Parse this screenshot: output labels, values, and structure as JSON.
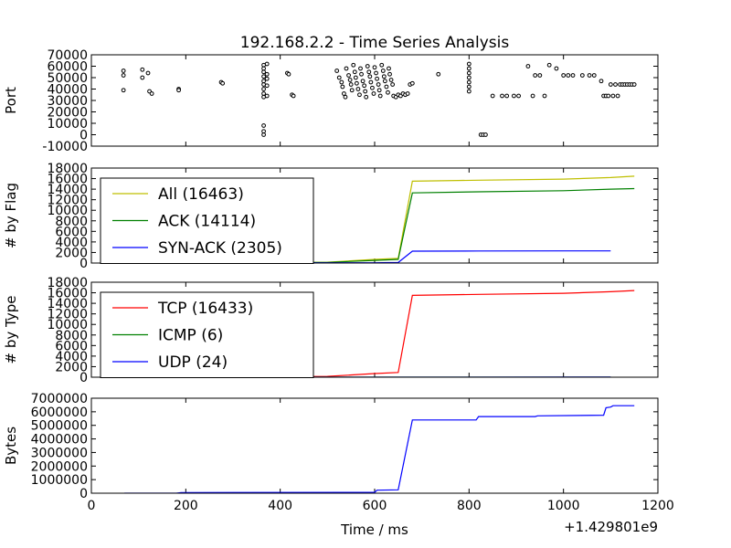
{
  "chart_data": [
    {
      "type": "scatter",
      "title": "192.168.2.2 - Time Series Analysis",
      "ylabel": "Port",
      "xlim": [
        0,
        1200
      ],
      "ylim": [
        -10000,
        70000
      ],
      "yticks": [
        -10000,
        0,
        10000,
        20000,
        30000,
        40000,
        50000,
        60000,
        70000
      ],
      "x_ticks_shown": false,
      "colors": {
        "marker_edge": "#000000",
        "marker_fill": "#ffffff"
      },
      "points": [
        [
          68,
          56000
        ],
        [
          68,
          52000
        ],
        [
          68,
          39000
        ],
        [
          108,
          57000
        ],
        [
          108,
          50000
        ],
        [
          120,
          54000
        ],
        [
          123,
          38000
        ],
        [
          128,
          36000
        ],
        [
          185,
          40000
        ],
        [
          185,
          39000
        ],
        [
          275,
          46000
        ],
        [
          278,
          45000
        ],
        [
          365,
          61000
        ],
        [
          365,
          58000
        ],
        [
          365,
          55000
        ],
        [
          365,
          51000
        ],
        [
          365,
          47000
        ],
        [
          365,
          44000
        ],
        [
          365,
          40000
        ],
        [
          365,
          36000
        ],
        [
          365,
          33000
        ],
        [
          365,
          8000
        ],
        [
          365,
          3000
        ],
        [
          365,
          0
        ],
        [
          372,
          62000
        ],
        [
          372,
          53000
        ],
        [
          372,
          49000
        ],
        [
          372,
          43000
        ],
        [
          372,
          34000
        ],
        [
          415,
          54000
        ],
        [
          418,
          53000
        ],
        [
          425,
          35000
        ],
        [
          428,
          34000
        ],
        [
          520,
          56000
        ],
        [
          525,
          50000
        ],
        [
          530,
          46000
        ],
        [
          532,
          42000
        ],
        [
          535,
          36000
        ],
        [
          538,
          33000
        ],
        [
          540,
          58000
        ],
        [
          545,
          52000
        ],
        [
          548,
          48000
        ],
        [
          550,
          44000
        ],
        [
          552,
          39000
        ],
        [
          555,
          61000
        ],
        [
          558,
          55000
        ],
        [
          560,
          50000
        ],
        [
          562,
          45000
        ],
        [
          565,
          40000
        ],
        [
          568,
          35000
        ],
        [
          570,
          58000
        ],
        [
          572,
          53000
        ],
        [
          575,
          47000
        ],
        [
          578,
          43000
        ],
        [
          580,
          38000
        ],
        [
          582,
          33000
        ],
        [
          585,
          60000
        ],
        [
          588,
          55000
        ],
        [
          590,
          51000
        ],
        [
          592,
          46000
        ],
        [
          595,
          41000
        ],
        [
          598,
          36000
        ],
        [
          600,
          59000
        ],
        [
          603,
          54000
        ],
        [
          605,
          49000
        ],
        [
          608,
          44000
        ],
        [
          610,
          39000
        ],
        [
          612,
          34000
        ],
        [
          615,
          61000
        ],
        [
          618,
          56000
        ],
        [
          620,
          51000
        ],
        [
          622,
          47000
        ],
        [
          625,
          42000
        ],
        [
          628,
          37000
        ],
        [
          630,
          58000
        ],
        [
          632,
          53000
        ],
        [
          635,
          48000
        ],
        [
          638,
          44000
        ],
        [
          640,
          34000
        ],
        [
          645,
          33000
        ],
        [
          650,
          35000
        ],
        [
          655,
          34000
        ],
        [
          660,
          36000
        ],
        [
          665,
          35000
        ],
        [
          670,
          36000
        ],
        [
          675,
          44000
        ],
        [
          680,
          45000
        ],
        [
          735,
          53000
        ],
        [
          800,
          62000
        ],
        [
          800,
          58000
        ],
        [
          800,
          54000
        ],
        [
          800,
          50000
        ],
        [
          800,
          46000
        ],
        [
          800,
          42000
        ],
        [
          800,
          38000
        ],
        [
          825,
          0
        ],
        [
          830,
          0
        ],
        [
          835,
          0
        ],
        [
          850,
          34000
        ],
        [
          870,
          34000
        ],
        [
          880,
          34000
        ],
        [
          895,
          34000
        ],
        [
          905,
          34000
        ],
        [
          925,
          60000
        ],
        [
          935,
          34000
        ],
        [
          940,
          52000
        ],
        [
          950,
          52000
        ],
        [
          960,
          34000
        ],
        [
          970,
          61000
        ],
        [
          985,
          58000
        ],
        [
          1000,
          52000
        ],
        [
          1010,
          52000
        ],
        [
          1020,
          52000
        ],
        [
          1040,
          52000
        ],
        [
          1055,
          52000
        ],
        [
          1065,
          52000
        ],
        [
          1080,
          47000
        ],
        [
          1085,
          34000
        ],
        [
          1090,
          34000
        ],
        [
          1095,
          34000
        ],
        [
          1100,
          44000
        ],
        [
          1105,
          34000
        ],
        [
          1110,
          44000
        ],
        [
          1115,
          34000
        ],
        [
          1120,
          44000
        ],
        [
          1125,
          44000
        ],
        [
          1130,
          44000
        ],
        [
          1135,
          44000
        ],
        [
          1140,
          44000
        ],
        [
          1145,
          44000
        ],
        [
          1150,
          44000
        ]
      ]
    },
    {
      "type": "line",
      "ylabel": "# by Flag",
      "xlim": [
        0,
        1200
      ],
      "ylim": [
        0,
        18000
      ],
      "yticks": [
        0,
        2000,
        4000,
        6000,
        8000,
        10000,
        12000,
        14000,
        16000,
        18000
      ],
      "x_ticks_shown": false,
      "legend": "top-left",
      "series": [
        {
          "name": "All (16463)",
          "color": "#bfbf00",
          "x": [
            70,
            500,
            600,
            650,
            680,
            820,
            1000,
            1100,
            1150
          ],
          "values": [
            100,
            150,
            700,
            900,
            15500,
            15700,
            15900,
            16200,
            16463
          ]
        },
        {
          "name": "ACK (14114)",
          "color": "#008000",
          "x": [
            70,
            500,
            600,
            650,
            680,
            820,
            1000,
            1100,
            1150
          ],
          "values": [
            80,
            120,
            500,
            700,
            13300,
            13500,
            13700,
            14000,
            14114
          ]
        },
        {
          "name": "SYN-ACK (2305)",
          "color": "#0000ff",
          "x": [
            70,
            600,
            650,
            680,
            820,
            1000,
            1100
          ],
          "values": [
            20,
            50,
            100,
            2250,
            2280,
            2295,
            2305
          ]
        }
      ]
    },
    {
      "type": "line",
      "ylabel": "# by Type",
      "xlim": [
        0,
        1200
      ],
      "ylim": [
        0,
        18000
      ],
      "yticks": [
        0,
        2000,
        4000,
        6000,
        8000,
        10000,
        12000,
        14000,
        16000,
        18000
      ],
      "x_ticks_shown": false,
      "legend": "top-left",
      "series": [
        {
          "name": "TCP (16433)",
          "color": "#ff0000",
          "x": [
            70,
            500,
            600,
            650,
            680,
            820,
            1000,
            1100,
            1150
          ],
          "values": [
            100,
            150,
            700,
            900,
            15500,
            15700,
            15900,
            16200,
            16433
          ]
        },
        {
          "name": "ICMP (6)",
          "color": "#008000",
          "x": [
            70,
            1100
          ],
          "values": [
            0,
            6
          ]
        },
        {
          "name": "UDP (24)",
          "color": "#0000ff",
          "x": [
            70,
            1100
          ],
          "values": [
            5,
            24
          ]
        }
      ]
    },
    {
      "type": "line",
      "ylabel": "Bytes",
      "xlabel": "Time / ms",
      "x_offset_label": "+1.429801e9",
      "xlim": [
        0,
        1200
      ],
      "ylim": [
        0,
        7000000
      ],
      "xticks": [
        0,
        200,
        400,
        600,
        800,
        1000,
        1200
      ],
      "yticks": [
        0,
        1000000,
        2000000,
        3000000,
        4000000,
        5000000,
        6000000,
        7000000
      ],
      "series": [
        {
          "color": "#0000ff",
          "x": [
            70,
            180,
            190,
            600,
            605,
            650,
            680,
            815,
            820,
            940,
            945,
            1085,
            1090,
            1100,
            1105,
            1150
          ],
          "values": [
            0,
            0,
            50000,
            60000,
            220000,
            250000,
            5400000,
            5400000,
            5650000,
            5650000,
            5700000,
            5750000,
            6300000,
            6350000,
            6450000,
            6450000
          ]
        }
      ]
    }
  ]
}
